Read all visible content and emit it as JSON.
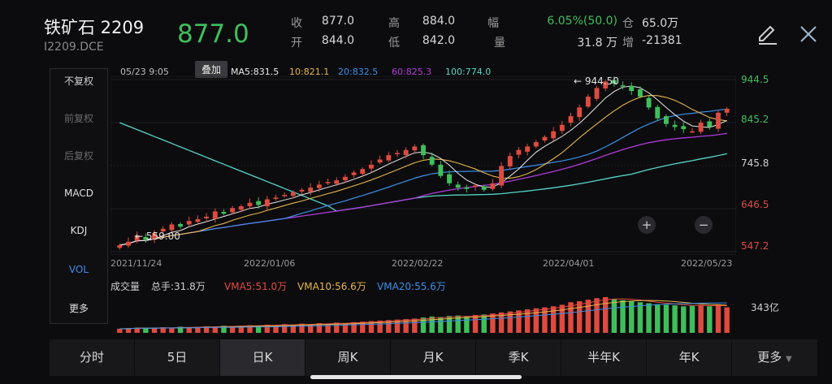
{
  "header": {
    "title": "铁矿石 2209",
    "code": "I2209.DCE",
    "price": "877.0",
    "quote": {
      "close_label": "收",
      "close": "877.0",
      "open_label": "开",
      "open": "844.0",
      "high_label": "高",
      "high": "884.0",
      "low_label": "低",
      "low": "842.0",
      "range_label": "幅",
      "range": "6.05%(50.0)",
      "vol_label": "量",
      "vol": "31.8 万",
      "oi_label": "仓",
      "oi": "65.0万",
      "chg_label": "增",
      "chg": "-21381"
    }
  },
  "side": {
    "items": [
      "不复权",
      "前复权",
      "后复权",
      "MACD",
      "KDJ",
      "VOL",
      "更多"
    ],
    "active": "不复权"
  },
  "overlay_chip": "叠加",
  "tabs": [
    "分时",
    "5日",
    "日K",
    "周K",
    "月K",
    "季K",
    "半年K",
    "年K",
    "更多"
  ],
  "active_tab": "日K",
  "colors": {
    "up": "#e04a3f",
    "down": "#3fbf5c",
    "ma5": "#e8e8e8",
    "ma10": "#e6b54a",
    "ma20": "#3b8fe8",
    "ma60": "#b03bdc",
    "ma100": "#55d6c8"
  },
  "chart_data": {
    "type": "candlestick",
    "header_date": "05/23 9:05",
    "ma_labels": [
      {
        "key": "ma5",
        "text": "MA5:831.5"
      },
      {
        "key": "ma10",
        "text": "10:821.1"
      },
      {
        "key": "ma20",
        "text": "20:832.5"
      },
      {
        "key": "ma60",
        "text": "60:825.3"
      },
      {
        "key": "ma100",
        "text": "100:774.0"
      }
    ],
    "y_ticks": [
      944.5,
      845.2,
      745.8,
      646.5,
      547.2
    ],
    "ylim": [
      547.2,
      944.5
    ],
    "x_ticks": [
      "2021/11/24",
      "2022/01/06",
      "2022/02/22",
      "2022/04/01",
      "2022/05/23"
    ],
    "annotations": {
      "max": {
        "label": "← 944.50",
        "value": 944.5
      },
      "min": {
        "label": "← 559.00",
        "value": 559.0
      }
    },
    "price_series": [
      562,
      570,
      585,
      575,
      590,
      600,
      610,
      605,
      618,
      622,
      628,
      640,
      635,
      648,
      652,
      660,
      655,
      668,
      672,
      678,
      684,
      690,
      695,
      702,
      708,
      712,
      720,
      730,
      738,
      748,
      760,
      770,
      775,
      782,
      790,
      770,
      748,
      722,
      705,
      695,
      692,
      700,
      690,
      705,
      745,
      768,
      782,
      790,
      800,
      812,
      825,
      840,
      860,
      880,
      905,
      925,
      940,
      935,
      930,
      918,
      905,
      880,
      855,
      842,
      835,
      830,
      825,
      845,
      835,
      868,
      877
    ],
    "volume": {
      "label": "成交量",
      "total_label": "总手:31.8万",
      "vma": [
        {
          "key": "ma5",
          "text": "VMA5:51.0万"
        },
        {
          "key": "ma10",
          "text": "VMA10:56.6万"
        },
        {
          "key": "ma20",
          "text": "VMA20:55.6万"
        }
      ],
      "max_label": "343亿",
      "series": [
        8,
        9,
        10,
        9,
        10,
        11,
        10,
        12,
        11,
        12,
        13,
        12,
        14,
        13,
        14,
        15,
        14,
        16,
        15,
        17,
        16,
        18,
        17,
        19,
        18,
        20,
        19,
        21,
        22,
        23,
        24,
        25,
        26,
        27,
        28,
        30,
        32,
        31,
        33,
        34,
        32,
        35,
        36,
        38,
        40,
        42,
        44,
        46,
        48,
        50,
        52,
        55,
        60,
        62,
        65,
        68,
        70,
        66,
        64,
        62,
        60,
        58,
        56,
        55,
        54,
        52,
        53,
        55,
        52,
        56,
        50
      ]
    }
  }
}
